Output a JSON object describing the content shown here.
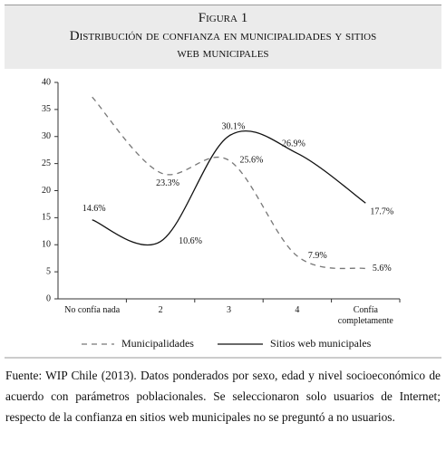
{
  "chart_data": {
    "type": "line",
    "label": "Figura 1",
    "title": "Distribución de confianza en municipalidades y sitios web municipales",
    "categories": [
      "No confía nada",
      "2",
      "3",
      "4",
      "Confía completamente"
    ],
    "series": [
      {
        "name": "Municipalidades",
        "color": "#777777",
        "dash": true,
        "values": [
          37.3,
          23.3,
          25.6,
          7.9,
          5.6
        ],
        "value_labels": [
          null,
          "23.3%",
          "25.6%",
          "7.9%",
          "5.6%"
        ]
      },
      {
        "name": "Sitios web municipales",
        "color": "#111111",
        "dash": false,
        "values": [
          14.6,
          10.6,
          30.1,
          26.9,
          17.7
        ],
        "value_labels": [
          "14.6%",
          "10.6%",
          "30.1%",
          "26.9%",
          "17.7%"
        ]
      }
    ],
    "ylim": [
      0,
      40
    ],
    "yticks": [
      0,
      5,
      10,
      15,
      20,
      25,
      30,
      35,
      40
    ],
    "grid": false,
    "smooth": true,
    "source": "Fuente: WIP Chile (2013). Datos ponderados por sexo, edad y nivel socioeconómico de acuerdo con parámetros poblacionales. Se seleccionaron solo usuarios de Internet; respecto de la confianza en sitios web municipales no se preguntó a no usuarios."
  }
}
